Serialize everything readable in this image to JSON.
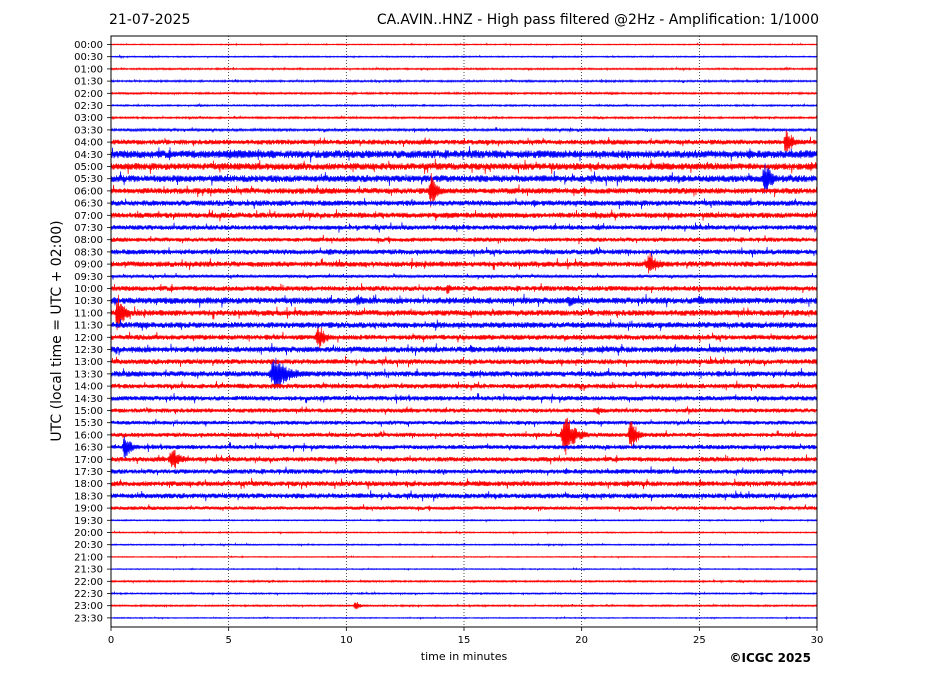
{
  "header": {
    "date": "21-07-2025",
    "title": "CA.AVIN..HNZ - High pass filtered @2Hz - Amplification: 1/1000"
  },
  "footer": {
    "copyright": "©ICGC 2025"
  },
  "colors": {
    "even_trace": "#ff0000",
    "odd_trace": "#0000ff",
    "grid": "#000000"
  },
  "chart_data": {
    "type": "line",
    "title": "CA.AVIN..HNZ - High pass filtered @2Hz - Amplification: 1/1000",
    "xlabel": "time in minutes",
    "ylabel": "UTC (local time = UTC + 02:00)",
    "xlim": [
      0,
      30
    ],
    "x_ticks": [
      "0",
      "5",
      "10",
      "15",
      "20",
      "25",
      "30"
    ],
    "vertical_grid_at": [
      5,
      10,
      15,
      20,
      25
    ],
    "y_ticks": [
      "00:00",
      "00:30",
      "01:00",
      "01:30",
      "02:00",
      "02:30",
      "03:00",
      "03:30",
      "04:00",
      "04:30",
      "05:00",
      "05:30",
      "06:00",
      "06:30",
      "07:00",
      "07:30",
      "08:00",
      "08:30",
      "09:00",
      "09:30",
      "10:00",
      "10:30",
      "11:00",
      "11:30",
      "12:00",
      "12:30",
      "13:00",
      "13:30",
      "14:00",
      "14:30",
      "15:00",
      "15:30",
      "16:00",
      "16:30",
      "17:00",
      "17:30",
      "18:00",
      "18:30",
      "19:00",
      "19:30",
      "20:00",
      "20:30",
      "21:00",
      "21:30",
      "22:00",
      "22:30",
      "23:00",
      "23:30"
    ],
    "trace_noise": [
      0.5,
      0.6,
      0.8,
      0.9,
      0.9,
      0.8,
      0.9,
      1.2,
      2.5,
      4.0,
      3.5,
      3.5,
      3.0,
      2.8,
      2.8,
      2.4,
      2.2,
      2.6,
      2.8,
      1.5,
      2.6,
      3.2,
      3.0,
      3.0,
      2.6,
      3.0,
      2.6,
      2.8,
      2.5,
      2.4,
      2.2,
      2.0,
      2.2,
      2.2,
      2.4,
      2.4,
      2.6,
      2.6,
      1.8,
      0.6,
      0.6,
      0.6,
      0.5,
      0.5,
      0.8,
      0.7,
      0.8,
      0.5
    ],
    "events": [
      {
        "trace": "04:00",
        "minute": 28.7,
        "amplitude": 16,
        "duration": 0.6
      },
      {
        "trace": "04:00",
        "minute": 16.0,
        "amplitude": 4,
        "duration": 0.5
      },
      {
        "trace": "04:30",
        "minute": 5.2,
        "amplitude": 5,
        "duration": 3.5
      },
      {
        "trace": "05:30",
        "minute": 27.8,
        "amplitude": 18,
        "duration": 0.7
      },
      {
        "trace": "06:00",
        "minute": 13.6,
        "amplitude": 20,
        "duration": 0.6
      },
      {
        "trace": "07:30",
        "minute": 20.7,
        "amplitude": 4,
        "duration": 0.4
      },
      {
        "trace": "08:30",
        "minute": 9.3,
        "amplitude": 5,
        "duration": 0.5
      },
      {
        "trace": "09:00",
        "minute": 22.9,
        "amplitude": 12,
        "duration": 0.9
      },
      {
        "trace": "10:00",
        "minute": 14.3,
        "amplitude": 8,
        "duration": 0.3
      },
      {
        "trace": "10:30",
        "minute": 10.5,
        "amplitude": 7,
        "duration": 0.7
      },
      {
        "trace": "10:30",
        "minute": 19.5,
        "amplitude": 6,
        "duration": 1.0
      },
      {
        "trace": "10:30",
        "minute": 25.0,
        "amplitude": 6,
        "duration": 0.8
      },
      {
        "trace": "11:00",
        "minute": 0.3,
        "amplitude": 22,
        "duration": 0.6
      },
      {
        "trace": "12:00",
        "minute": 8.8,
        "amplitude": 16,
        "duration": 0.6
      },
      {
        "trace": "12:30",
        "minute": 15.3,
        "amplitude": 5,
        "duration": 0.6
      },
      {
        "trace": "13:30",
        "minute": 7.0,
        "amplitude": 18,
        "duration": 1.4
      },
      {
        "trace": "13:30",
        "minute": 15.4,
        "amplitude": 4,
        "duration": 0.5
      },
      {
        "trace": "15:00",
        "minute": 20.7,
        "amplitude": 4,
        "duration": 0.6
      },
      {
        "trace": "16:00",
        "minute": 19.3,
        "amplitude": 22,
        "duration": 1.0
      },
      {
        "trace": "16:00",
        "minute": 22.1,
        "amplitude": 18,
        "duration": 0.6
      },
      {
        "trace": "16:30",
        "minute": 0.6,
        "amplitude": 14,
        "duration": 0.6
      },
      {
        "trace": "17:00",
        "minute": 2.6,
        "amplitude": 14,
        "duration": 0.8
      },
      {
        "trace": "23:00",
        "minute": 10.4,
        "amplitude": 6,
        "duration": 0.4
      }
    ]
  }
}
